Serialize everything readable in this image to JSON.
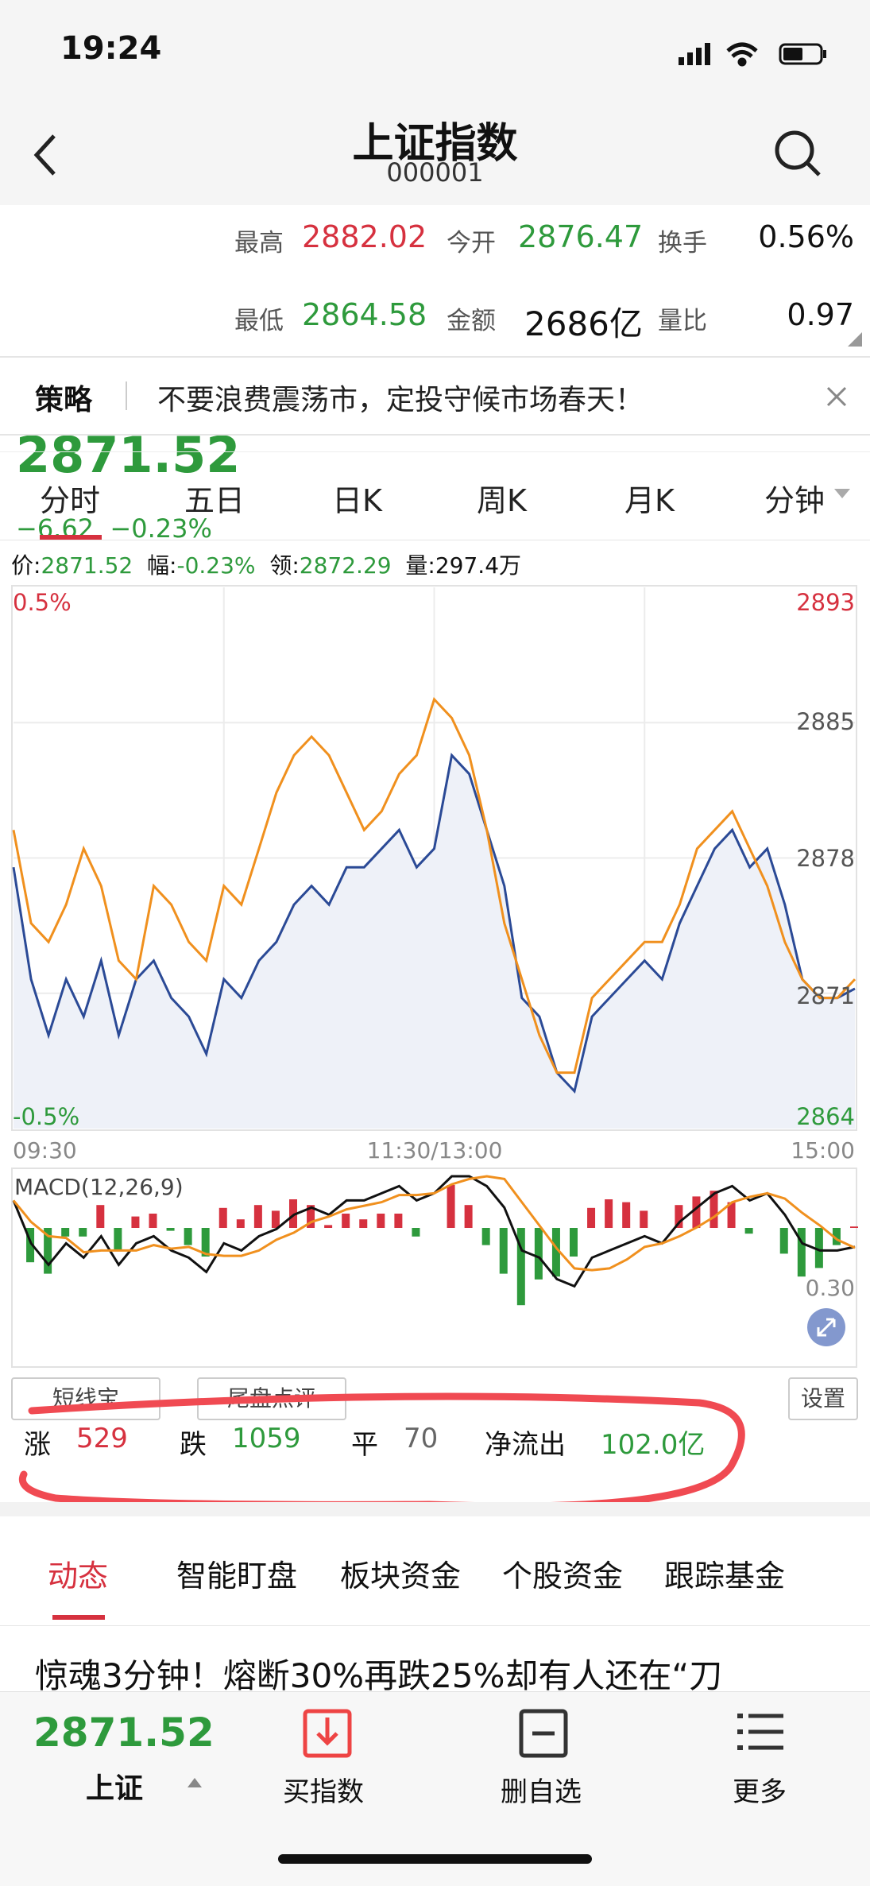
{
  "status": {
    "time": "19:24"
  },
  "nav": {
    "title": "上证指数",
    "code": "000001"
  },
  "quote": {
    "price": "2871.52",
    "change": "−6.62",
    "change_pct": "−0.23%",
    "high_label": "最高",
    "high": "2882.02",
    "open_label": "今开",
    "open": "2876.47",
    "turnover_label": "换手",
    "turnover": "0.56%",
    "low_label": "最低",
    "low": "2864.58",
    "amount_label": "金额",
    "amount": "2686亿",
    "vol_ratio_label": "量比",
    "vol_ratio": "0.97"
  },
  "banner": {
    "tag": "策略",
    "text": "不要浪费震荡市，定投守候市场春天！"
  },
  "tabs": [
    "分时",
    "五日",
    "日K",
    "周K",
    "月K",
    "分钟"
  ],
  "info": {
    "price_label": "价:",
    "price": "2871.52",
    "range_label": "幅:",
    "range": "-0.23%",
    "lead_label": "领:",
    "lead": "2872.29",
    "vol_label": "量:",
    "vol": "297.4万"
  },
  "chart_data": {
    "type": "line",
    "title": "",
    "x_ticks": [
      "09:30",
      "11:30/13:00",
      "15:00"
    ],
    "y_left": [
      "0.5%",
      "-0.5%"
    ],
    "y_right": [
      "2893",
      "2885",
      "2878",
      "2871",
      "2864"
    ],
    "ylim": [
      2864,
      2893
    ],
    "series": [
      {
        "name": "",
        "color": "#2b4a96",
        "values": [
          2878,
          2872,
          2869,
          2872,
          2870,
          2873,
          2869,
          2872,
          2873,
          2871,
          2870,
          2868,
          2872,
          2871,
          2873,
          2874,
          2876,
          2877,
          2876,
          2878,
          2878,
          2879,
          2880,
          2878,
          2879,
          2884,
          2883,
          2880,
          2877,
          2871,
          2870,
          2867,
          2866,
          2870,
          2871,
          2872,
          2873,
          2872,
          2875,
          2877,
          2879,
          2880,
          2878,
          2879,
          2876,
          2872,
          2871,
          2871,
          2871.5
        ]
      },
      {
        "name": "",
        "color": "#f0901e",
        "values": [
          2880,
          2875,
          2874,
          2876,
          2879,
          2877,
          2873,
          2872,
          2877,
          2876,
          2874,
          2873,
          2877,
          2876,
          2879,
          2882,
          2884,
          2885,
          2884,
          2882,
          2880,
          2881,
          2883,
          2884,
          2887,
          2886,
          2884,
          2880,
          2875,
          2872,
          2869,
          2867,
          2867,
          2871,
          2872,
          2873,
          2874,
          2874,
          2876,
          2879,
          2880,
          2881,
          2879,
          2877,
          2874,
          2872,
          2871,
          2871,
          2872
        ]
      }
    ],
    "macd": {
      "label": "MACD(12,26,9)",
      "right_label": "0.30"
    }
  },
  "chart_tags": [
    "短线宝",
    "尾盘点评"
  ],
  "chart_settings": "设置",
  "stats": {
    "up_label": "涨",
    "up": "529",
    "down_label": "跌",
    "down": "1059",
    "flat_label": "平",
    "flat": "70",
    "flow_label": "净流出",
    "flow": "102.0亿"
  },
  "news_tabs": [
    "动态",
    "智能盯盘",
    "板块资金",
    "个股资金",
    "跟踪基金"
  ],
  "headline": "惊魂3分钟！熔断30%再跌25%却有人还在“刀",
  "bottom": {
    "price": "2871.52",
    "name": "上证",
    "buy": "买指数",
    "remove": "删自选",
    "more": "更多"
  },
  "colors": {
    "red": "#d6313f",
    "green": "#2e9a3c",
    "blue_line": "#2b4a96",
    "orange_line": "#f0901e"
  }
}
